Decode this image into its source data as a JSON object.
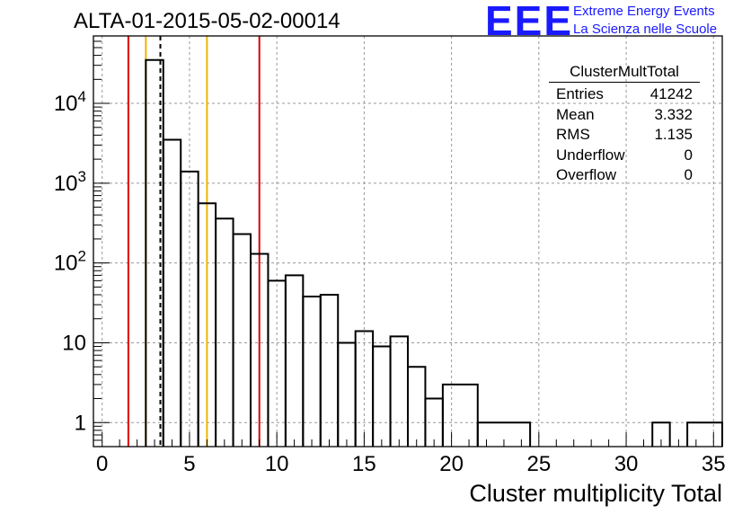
{
  "header": {
    "title": "ALTA-01-2015-05-02-00014"
  },
  "logo": {
    "mark": "EEE",
    "line1": "Extreme Energy Events",
    "line2": "La Scienza nelle Scuole"
  },
  "stats_box": {
    "title": "ClusterMultTotal",
    "rows": [
      {
        "label": "Entries",
        "value": "41242"
      },
      {
        "label": "Mean",
        "value": "3.332"
      },
      {
        "label": "RMS",
        "value": "1.135"
      },
      {
        "label": "Underflow",
        "value": "0"
      },
      {
        "label": "Overflow",
        "value": "0"
      }
    ]
  },
  "chart_data": {
    "type": "bar",
    "title": "ALTA-01-2015-05-02-00014",
    "xlabel": "Cluster multiplicity Total",
    "ylabel": "",
    "xlim": [
      -0.5,
      35.5
    ],
    "ylim": [
      0.5,
      70000
    ],
    "log_y": true,
    "grid": true,
    "x_ticks": [
      "0",
      "5",
      "10",
      "15",
      "20",
      "25",
      "30",
      "35"
    ],
    "y_ticks": [
      "1",
      "10",
      "10^2",
      "10^3",
      "10^4"
    ],
    "bins": [
      {
        "low": 2.5,
        "high": 3.5,
        "value": 35000
      },
      {
        "low": 3.5,
        "high": 4.5,
        "value": 3500
      },
      {
        "low": 4.5,
        "high": 5.5,
        "value": 1400
      },
      {
        "low": 5.5,
        "high": 6.5,
        "value": 560
      },
      {
        "low": 6.5,
        "high": 7.5,
        "value": 360
      },
      {
        "low": 7.5,
        "high": 8.5,
        "value": 230
      },
      {
        "low": 8.5,
        "high": 9.5,
        "value": 130
      },
      {
        "low": 9.5,
        "high": 10.5,
        "value": 60
      },
      {
        "low": 10.5,
        "high": 11.5,
        "value": 70
      },
      {
        "low": 11.5,
        "high": 12.5,
        "value": 38
      },
      {
        "low": 12.5,
        "high": 13.5,
        "value": 40
      },
      {
        "low": 13.5,
        "high": 14.5,
        "value": 10
      },
      {
        "low": 14.5,
        "high": 15.5,
        "value": 14
      },
      {
        "low": 15.5,
        "high": 16.5,
        "value": 9
      },
      {
        "low": 16.5,
        "high": 17.5,
        "value": 12
      },
      {
        "low": 17.5,
        "high": 18.5,
        "value": 5
      },
      {
        "low": 18.5,
        "high": 19.5,
        "value": 2
      },
      {
        "low": 19.5,
        "high": 21.5,
        "value": 3
      },
      {
        "low": 21.5,
        "high": 24.5,
        "value": 1
      },
      {
        "low": 31.5,
        "high": 32.5,
        "value": 1
      },
      {
        "low": 33.5,
        "high": 35.5,
        "value": 1
      }
    ],
    "vertical_lines": [
      {
        "x": 1.5,
        "color": "#e00000",
        "style": "solid"
      },
      {
        "x": 2.5,
        "color": "#f0b400",
        "style": "solid"
      },
      {
        "x": 3.332,
        "color": "#000000",
        "style": "dashed"
      },
      {
        "x": 6.0,
        "color": "#f0b400",
        "style": "solid"
      },
      {
        "x": 9.0,
        "color": "#e00000",
        "style": "solid"
      }
    ]
  }
}
